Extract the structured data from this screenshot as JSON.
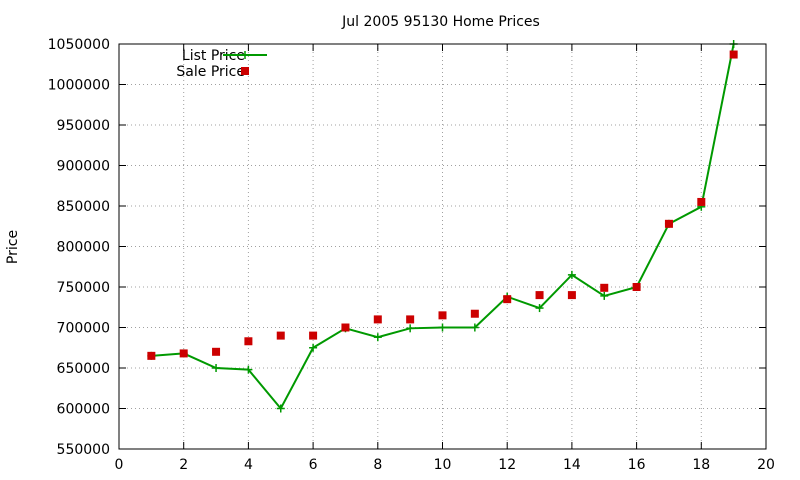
{
  "chart_data": {
    "type": "line",
    "title": "Jul 2005 95130 Home Prices",
    "xlabel": "",
    "ylabel": "Price",
    "xlim": [
      0,
      20
    ],
    "ylim": [
      550000,
      1050000
    ],
    "x_ticks": [
      0,
      2,
      4,
      6,
      8,
      10,
      12,
      14,
      16,
      18,
      20
    ],
    "y_ticks": [
      550000,
      600000,
      650000,
      700000,
      750000,
      800000,
      850000,
      900000,
      950000,
      1000000,
      1050000
    ],
    "grid": true,
    "legend_position": "top-left",
    "series": [
      {
        "name": "List Price",
        "style": "line-with-plus-markers",
        "color": "#009900",
        "points": [
          [
            1,
            665000
          ],
          [
            2,
            668000
          ],
          [
            3,
            650000
          ],
          [
            4,
            648000
          ],
          [
            5,
            600000
          ],
          [
            6,
            675000
          ],
          [
            7,
            699000
          ],
          [
            8,
            688000
          ],
          [
            9,
            699000
          ],
          [
            10,
            700000
          ],
          [
            11,
            700000
          ],
          [
            12,
            738000
          ],
          [
            13,
            724000
          ],
          [
            14,
            765000
          ],
          [
            15,
            739000
          ],
          [
            16,
            750000
          ],
          [
            17,
            828000
          ],
          [
            18,
            849000
          ],
          [
            19,
            1050000
          ]
        ]
      },
      {
        "name": "Sale Price",
        "style": "square-markers",
        "color": "#cc0000",
        "points": [
          [
            1,
            665000
          ],
          [
            2,
            668000
          ],
          [
            3,
            670000
          ],
          [
            4,
            683000
          ],
          [
            5,
            690000
          ],
          [
            6,
            690000
          ],
          [
            7,
            700000
          ],
          [
            8,
            710000
          ],
          [
            9,
            710000
          ],
          [
            10,
            715000
          ],
          [
            11,
            717000
          ],
          [
            12,
            735000
          ],
          [
            13,
            740000
          ],
          [
            14,
            740000
          ],
          [
            15,
            749000
          ],
          [
            16,
            750000
          ],
          [
            17,
            828000
          ],
          [
            18,
            855000
          ],
          [
            19,
            1037000
          ]
        ]
      }
    ]
  }
}
